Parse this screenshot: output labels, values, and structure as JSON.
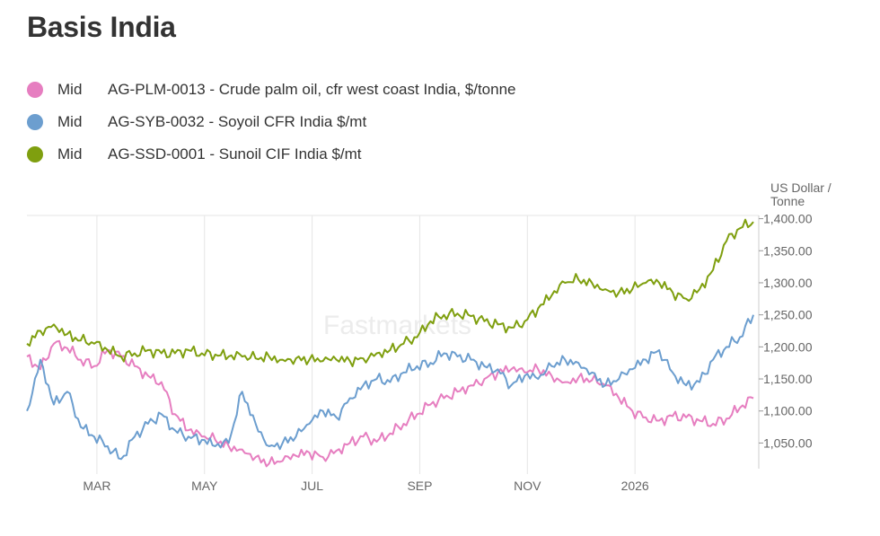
{
  "title": "Basis India",
  "legend": [
    {
      "stat": "Mid",
      "label": "AG-PLM-0013 - Crude palm oil, cfr west coast India, $/tonne",
      "color": "#e67ec0"
    },
    {
      "stat": "Mid",
      "label": "AG-SYB-0032 - Soyoil CFR India $/mt",
      "color": "#6c9ecf"
    },
    {
      "stat": "Mid",
      "label": "AG-SSD-0001 - Sunoil CIF India $/mt",
      "color": "#7f9f0f"
    }
  ],
  "watermark": "Fastmarkets",
  "chart_data": {
    "type": "line",
    "title": "Basis India",
    "ylabel": "US Dollar / Tonne",
    "ylabel_lines": [
      "US Dollar /",
      "Tonne"
    ],
    "ylim": [
      1010,
      1405
    ],
    "yticks": [
      1050,
      1100,
      1150,
      1200,
      1250,
      1300,
      1350,
      1400
    ],
    "ytick_labels": [
      "1,050.00",
      "1,100.00",
      "1,150.00",
      "1,200.00",
      "1,250.00",
      "1,300.00",
      "1,350.00",
      "1,400.00"
    ],
    "x_range_months": [
      0,
      13.6
    ],
    "xticks": [
      1.3,
      3.3,
      5.3,
      7.3,
      9.3,
      11.3
    ],
    "xtick_labels": [
      "MAR",
      "MAY",
      "JUL",
      "SEP",
      "NOV",
      "2026"
    ],
    "grid": "vertical",
    "series": [
      {
        "name": "AG-PLM-0013 - Crude palm oil, cfr west coast India, $/tonne",
        "stat": "Mid",
        "color": "#e67ec0",
        "x": [
          0.0,
          0.25,
          0.5,
          0.75,
          1.0,
          1.25,
          1.5,
          1.75,
          2.0,
          2.25,
          2.5,
          2.75,
          3.0,
          3.25,
          3.5,
          3.75,
          4.0,
          4.25,
          4.5,
          4.75,
          5.0,
          5.25,
          5.5,
          5.75,
          6.0,
          6.25,
          6.5,
          6.75,
          7.0,
          7.25,
          7.5,
          7.75,
          8.0,
          8.25,
          8.5,
          8.75,
          9.0,
          9.25,
          9.5,
          9.75,
          10.0,
          10.25,
          10.5,
          10.75,
          11.0,
          11.25,
          11.5,
          11.75,
          12.0,
          12.25,
          12.5,
          12.75,
          13.0,
          13.25,
          13.5
        ],
        "values": [
          1185,
          1165,
          1205,
          1198,
          1180,
          1170,
          1195,
          1185,
          1170,
          1155,
          1145,
          1095,
          1070,
          1060,
          1055,
          1045,
          1040,
          1028,
          1018,
          1022,
          1030,
          1035,
          1028,
          1038,
          1050,
          1060,
          1052,
          1065,
          1080,
          1095,
          1110,
          1120,
          1130,
          1140,
          1150,
          1160,
          1165,
          1160,
          1165,
          1155,
          1145,
          1152,
          1148,
          1140,
          1120,
          1100,
          1090,
          1085,
          1092,
          1090,
          1085,
          1080,
          1088,
          1105,
          1120
        ]
      },
      {
        "name": "AG-SYB-0032 - Soyoil CFR India $/mt",
        "stat": "Mid",
        "color": "#6c9ecf",
        "x": [
          0.0,
          0.25,
          0.5,
          0.75,
          1.0,
          1.25,
          1.5,
          1.75,
          2.0,
          2.25,
          2.5,
          2.75,
          3.0,
          3.25,
          3.5,
          3.75,
          4.0,
          4.25,
          4.5,
          4.75,
          5.0,
          5.25,
          5.5,
          5.75,
          6.0,
          6.25,
          6.5,
          6.75,
          7.0,
          7.25,
          7.5,
          7.75,
          8.0,
          8.25,
          8.5,
          8.75,
          9.0,
          9.25,
          9.5,
          9.75,
          10.0,
          10.25,
          10.5,
          10.75,
          11.0,
          11.25,
          11.5,
          11.75,
          12.0,
          12.25,
          12.5,
          12.75,
          13.0,
          13.25,
          13.5
        ],
        "values": [
          1100,
          1180,
          1110,
          1130,
          1075,
          1060,
          1045,
          1025,
          1060,
          1080,
          1095,
          1070,
          1060,
          1055,
          1045,
          1050,
          1130,
          1080,
          1045,
          1050,
          1060,
          1080,
          1100,
          1090,
          1120,
          1140,
          1150,
          1145,
          1160,
          1170,
          1175,
          1190,
          1185,
          1180,
          1170,
          1165,
          1140,
          1155,
          1150,
          1170,
          1180,
          1175,
          1160,
          1140,
          1150,
          1165,
          1180,
          1195,
          1160,
          1140,
          1145,
          1180,
          1200,
          1215,
          1250
        ]
      },
      {
        "name": "AG-SSD-0001 - Sunoil CIF India $/mt",
        "stat": "Mid",
        "color": "#7f9f0f",
        "x": [
          0.0,
          0.25,
          0.5,
          0.75,
          1.0,
          1.25,
          1.5,
          1.75,
          2.0,
          2.25,
          2.5,
          2.75,
          3.0,
          3.25,
          3.5,
          3.75,
          4.0,
          4.25,
          4.5,
          4.75,
          5.0,
          5.25,
          5.5,
          5.75,
          6.0,
          6.25,
          6.5,
          6.75,
          7.0,
          7.25,
          7.5,
          7.75,
          8.0,
          8.25,
          8.5,
          8.75,
          9.0,
          9.25,
          9.5,
          9.75,
          10.0,
          10.25,
          10.5,
          10.75,
          11.0,
          11.25,
          11.5,
          11.75,
          12.0,
          12.25,
          12.5,
          12.75,
          13.0,
          13.25,
          13.5
        ],
        "values": [
          1205,
          1225,
          1235,
          1220,
          1210,
          1205,
          1195,
          1185,
          1190,
          1195,
          1190,
          1190,
          1195,
          1190,
          1188,
          1185,
          1185,
          1182,
          1185,
          1180,
          1182,
          1180,
          1178,
          1180,
          1178,
          1182,
          1190,
          1195,
          1205,
          1215,
          1240,
          1250,
          1252,
          1248,
          1240,
          1235,
          1230,
          1240,
          1260,
          1280,
          1300,
          1305,
          1300,
          1290,
          1285,
          1290,
          1300,
          1300,
          1285,
          1275,
          1290,
          1320,
          1365,
          1385,
          1395
        ]
      }
    ]
  }
}
